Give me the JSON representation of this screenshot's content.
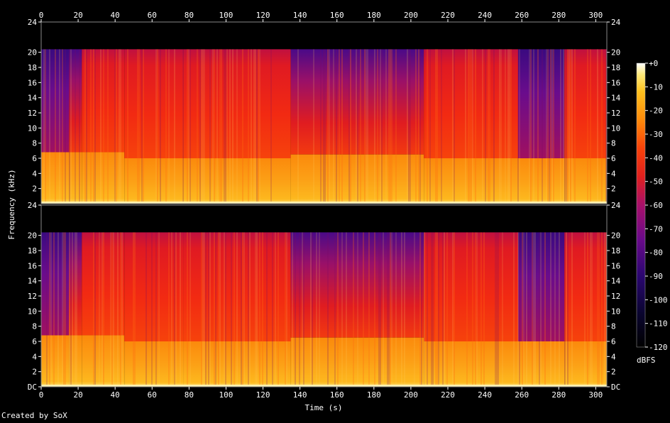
{
  "chart_data": {
    "type": "heatmap",
    "title": "",
    "xlabel": "Time (s)",
    "ylabel": "Frequency (kHz)",
    "x_ticks": [
      0,
      20,
      40,
      60,
      80,
      100,
      120,
      140,
      160,
      180,
      200,
      220,
      240,
      260,
      280,
      300
    ],
    "x_range": [
      0,
      306
    ],
    "y_ticks_top": [
      "24",
      "20",
      "18",
      "16",
      "14",
      "12",
      "10",
      "8",
      "6",
      "4",
      "2"
    ],
    "y_ticks_bottom": [
      "24",
      "20",
      "18",
      "16",
      "14",
      "12",
      "10",
      "8",
      "6",
      "4",
      "2",
      "DC"
    ],
    "y_tick_values_top": [
      24,
      20,
      18,
      16,
      14,
      12,
      10,
      8,
      6,
      4,
      2
    ],
    "y_tick_values_bottom": [
      24,
      20,
      18,
      16,
      14,
      12,
      10,
      8,
      6,
      4,
      2,
      0
    ],
    "y_range": [
      0,
      24
    ],
    "channels": 2,
    "colorbar": {
      "label": "dBFS",
      "ticks": [
        "+0",
        "-10",
        "-20",
        "-30",
        "-40",
        "-50",
        "-60",
        "-70",
        "-80",
        "-90",
        "-100",
        "-110",
        "-120"
      ],
      "tick_values": [
        0,
        -10,
        -20,
        -30,
        -40,
        -50,
        -60,
        -70,
        -80,
        -90,
        -100,
        -110,
        -120
      ],
      "range": [
        -120,
        0
      ]
    },
    "cutoff_khz": 20.4,
    "segments": [
      {
        "t0": 0,
        "t1": 15,
        "upper": "purple",
        "lower_cut_khz": 6.8
      },
      {
        "t0": 15,
        "t1": 22,
        "upper": "purple-red",
        "lower_cut_khz": 6.8
      },
      {
        "t0": 22,
        "t1": 45,
        "upper": "red",
        "lower_cut_khz": 6.8
      },
      {
        "t0": 45,
        "t1": 77,
        "upper": "red",
        "lower_cut_khz": 6.0
      },
      {
        "t0": 77,
        "t1": 135,
        "upper": "red",
        "lower_cut_khz": 6.0
      },
      {
        "t0": 135,
        "t1": 207,
        "upper": "purple-red",
        "lower_cut_khz": 6.5
      },
      {
        "t0": 207,
        "t1": 258,
        "upper": "red",
        "lower_cut_khz": 6.0
      },
      {
        "t0": 258,
        "t1": 283,
        "upper": "purple",
        "lower_cut_khz": 6.0
      },
      {
        "t0": 283,
        "t1": 306,
        "upper": "red",
        "lower_cut_khz": 6.0
      }
    ]
  },
  "footer": "Created by SoX"
}
